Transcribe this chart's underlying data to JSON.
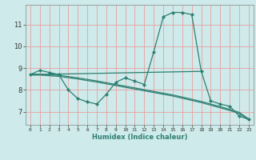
{
  "xlabel": "Humidex (Indice chaleur)",
  "background_color": "#ceeaea",
  "line_color": "#2d7f72",
  "grid_color_v": "#e8a0a0",
  "grid_color_h": "#e8a0a0",
  "xlim": [
    -0.5,
    23.5
  ],
  "ylim": [
    6.4,
    11.9
  ],
  "yticks": [
    7,
    8,
    9,
    10,
    11
  ],
  "xticks": [
    0,
    1,
    2,
    3,
    4,
    5,
    6,
    7,
    8,
    9,
    10,
    11,
    12,
    13,
    14,
    15,
    16,
    17,
    18,
    19,
    20,
    21,
    22,
    23
  ],
  "curve_with_markers": {
    "x": [
      0,
      1,
      2,
      3,
      4,
      5,
      6,
      7,
      8,
      9,
      10,
      11,
      12,
      13,
      14,
      15,
      16,
      17,
      18,
      19,
      20,
      21,
      22,
      23
    ],
    "y": [
      8.7,
      8.9,
      8.8,
      8.7,
      8.0,
      7.6,
      7.45,
      7.35,
      7.8,
      8.35,
      8.55,
      8.4,
      8.25,
      9.75,
      11.35,
      11.55,
      11.55,
      11.45,
      8.85,
      7.5,
      7.35,
      7.25,
      6.8,
      6.65
    ]
  },
  "flat_line": {
    "x": [
      0,
      18
    ],
    "y": [
      8.7,
      8.85
    ]
  },
  "decline_line1": {
    "x": [
      0,
      1,
      2,
      3,
      4,
      5,
      6,
      7,
      8,
      9,
      10,
      11,
      12,
      13,
      14,
      15,
      16,
      17,
      18,
      19,
      20,
      21,
      22,
      23
    ],
    "y": [
      8.68,
      8.68,
      8.65,
      8.62,
      8.56,
      8.5,
      8.43,
      8.36,
      8.28,
      8.2,
      8.12,
      8.04,
      7.96,
      7.88,
      7.8,
      7.72,
      7.62,
      7.52,
      7.42,
      7.3,
      7.18,
      7.06,
      6.92,
      6.62
    ]
  },
  "decline_line2": {
    "x": [
      0,
      1,
      2,
      3,
      4,
      5,
      6,
      7,
      8,
      9,
      10,
      11,
      12,
      13,
      14,
      15,
      16,
      17,
      18,
      19,
      20,
      21,
      22,
      23
    ],
    "y": [
      8.72,
      8.72,
      8.7,
      8.67,
      8.61,
      8.55,
      8.48,
      8.41,
      8.33,
      8.25,
      8.17,
      8.09,
      8.01,
      7.93,
      7.85,
      7.77,
      7.67,
      7.57,
      7.47,
      7.35,
      7.23,
      7.11,
      6.97,
      6.67
    ]
  }
}
